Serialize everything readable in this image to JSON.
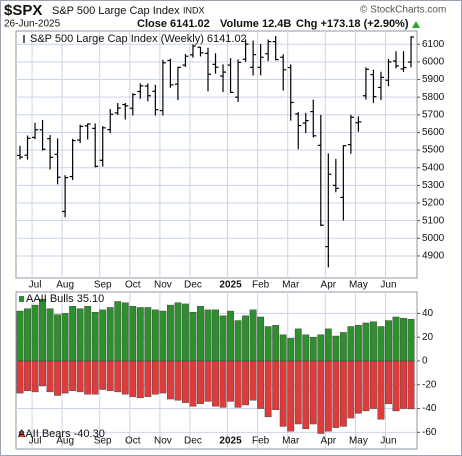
{
  "header": {
    "symbol": "$SPX",
    "name": "S&P 500 Large Cap Index",
    "exchange": "INDX",
    "date": "26-Jun-2025",
    "close": "Close 6141.02",
    "volume": "Volume 12.4B",
    "change": "Chg +173.18 (+2.90%)",
    "credit": "© StockCharts.com"
  },
  "chart_data": [
    {
      "type": "ohlc",
      "categories": [
        null,
        null,
        "Jul",
        null,
        null,
        null,
        "Aug",
        null,
        null,
        null,
        null,
        "Sep",
        null,
        null,
        null,
        "Oct",
        null,
        null,
        null,
        "Nov",
        null,
        null,
        null,
        "Dec",
        null,
        null,
        null,
        null,
        "2025",
        null,
        null,
        null,
        "Feb",
        null,
        null,
        null,
        "Mar",
        null,
        null,
        null,
        null,
        "Apr",
        null,
        null,
        null,
        "May",
        null,
        null,
        null,
        "Jun",
        null,
        null,
        null
      ],
      "ylim": [
        4775,
        6175
      ],
      "yticks": [
        4900,
        5000,
        5100,
        5200,
        5300,
        5400,
        5500,
        5600,
        5700,
        5800,
        5900,
        6000,
        6100
      ],
      "grid": true,
      "series": [
        {
          "name": "S&P 500 Large Cap Index (Weekly) 6141.02",
          "color": "#000000",
          "open": [
            5470,
            5471,
            5572,
            5615,
            5565,
            5476,
            5152,
            5350,
            5557,
            5637,
            5623,
            5442,
            5616,
            5711,
            5758,
            5737,
            5832,
            5863,
            5833,
            5724,
            6008,
            5874,
            5982,
            6040,
            6083,
            6048,
            5986,
            5920,
            5982,
            5800,
            6015,
            5969,
            5969,
            6046,
            6115,
            6026,
            5968,
            5705,
            5653,
            5718,
            5527,
            4953,
            5300,
            5232,
            5531,
            5655,
            5808,
            5928,
            5855,
            5896,
            6005,
            5960,
            5999
          ],
          "high": [
            5524,
            5583,
            5655,
            5670,
            5585,
            5566,
            5358,
            5564,
            5644,
            5651,
            5651,
            5636,
            5733,
            5767,
            5767,
            5822,
            5878,
            5878,
            5870,
            6012,
            6018,
            5973,
            6044,
            6099,
            6085,
            6080,
            6049,
            5986,
            6021,
            6014,
            6128,
            6120,
            6101,
            6127,
            6147,
            6043,
            5986,
            5715,
            5711,
            5786,
            5700,
            5481,
            5450,
            5528,
            5700,
            5691,
            5969,
            5956,
            5944,
            6017,
            6060,
            6060,
            6145
          ],
          "low": [
            5447,
            5446,
            5562,
            5497,
            5390,
            5306,
            5119,
            5330,
            5540,
            5560,
            5402,
            5406,
            5596,
            5699,
            5674,
            5696,
            5791,
            5776,
            5696,
            5696,
            5853,
            5783,
            5972,
            6024,
            6031,
            5833,
            5933,
            5829,
            5825,
            5773,
            6000,
            5923,
            5924,
            6004,
            6009,
            5837,
            5667,
            5505,
            5597,
            5572,
            5069,
            4835,
            5261,
            5101,
            5479,
            5604,
            5786,
            5768,
            5783,
            5862,
            5963,
            5943,
            5969
          ],
          "close": [
            5460,
            5567,
            5615,
            5505,
            5459,
            5346,
            5344,
            5554,
            5634,
            5648,
            5408,
            5626,
            5703,
            5738,
            5751,
            5815,
            5864,
            5808,
            5729,
            5995,
            5870,
            5969,
            6032,
            6090,
            6051,
            5930,
            5970,
            5942,
            5827,
            5997,
            6101,
            6041,
            6026,
            6115,
            6013,
            5955,
            5770,
            5639,
            5667,
            5581,
            5074,
            5363,
            5283,
            5525,
            5686,
            5660,
            5958,
            5803,
            5912,
            6000,
            5977,
            5968,
            6141.02
          ]
        }
      ]
    },
    {
      "type": "bar",
      "categories": [
        null,
        null,
        "Jul",
        null,
        null,
        null,
        "Aug",
        null,
        null,
        null,
        null,
        "Sep",
        null,
        null,
        null,
        "Oct",
        null,
        null,
        null,
        "Nov",
        null,
        null,
        null,
        "Dec",
        null,
        null,
        null,
        null,
        "2025",
        null,
        null,
        null,
        "Feb",
        null,
        null,
        null,
        "Mar",
        null,
        null,
        null,
        null,
        "Apr",
        null,
        null,
        null,
        "May",
        null,
        null,
        null,
        "Jun",
        null,
        null,
        null
      ],
      "ylim": [
        -74,
        58
      ],
      "yticks": [
        -60,
        -40,
        -20,
        0,
        20,
        40
      ],
      "grid": true,
      "series": [
        {
          "name": "AAII Bulls 35.10",
          "color": "#2f8f2f",
          "values": [
            42,
            44,
            47,
            52,
            44,
            39,
            40,
            46,
            44,
            46,
            41,
            43,
            45,
            50,
            49,
            46,
            45,
            45,
            43,
            42,
            47,
            49,
            48,
            41,
            46,
            43,
            43,
            38,
            42,
            34,
            38,
            43,
            37,
            29,
            30,
            22,
            19,
            27,
            22,
            20,
            22,
            27,
            21,
            24,
            29,
            30,
            32,
            33,
            29,
            34,
            37,
            36,
            35.1
          ]
        },
        {
          "name": "AAII Bears -40.30",
          "color": "#e03b3b",
          "values": [
            -27,
            -25,
            -26,
            -21,
            -26,
            -29,
            -27,
            -25,
            -26,
            -28,
            -28,
            -24,
            -25,
            -26,
            -28,
            -30,
            -31,
            -30,
            -28,
            -27,
            -32,
            -33,
            -35,
            -38,
            -36,
            -34,
            -38,
            -39,
            -34,
            -39,
            -37,
            -33,
            -40,
            -47,
            -41,
            -55,
            -59,
            -53,
            -57,
            -53,
            -61,
            -59,
            -56,
            -55,
            -48,
            -44,
            -42,
            -40,
            -49,
            -36,
            -42,
            -40,
            -40.3
          ]
        }
      ]
    }
  ]
}
